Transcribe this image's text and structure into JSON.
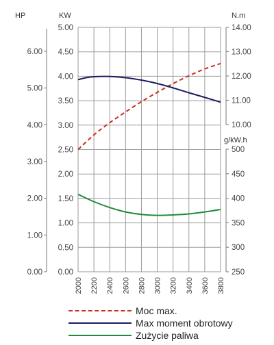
{
  "chart_data": {
    "type": "line",
    "x_label": "",
    "x_ticks": [
      2000,
      2200,
      2400,
      2600,
      2800,
      3000,
      3200,
      3400,
      3600,
      3800
    ],
    "xlim": [
      2000,
      3800
    ],
    "axes": {
      "hp": {
        "unit": "HP",
        "ticks": [
          "0.00",
          "1.00",
          "2.00",
          "3.00",
          "4.00",
          "5.00",
          "6.00"
        ],
        "range": [
          0,
          6.65
        ]
      },
      "kw": {
        "unit": "KW",
        "ticks": [
          "0.00",
          "0.50",
          "1.00",
          "1.50",
          "2.00",
          "2.50",
          "3.00",
          "3.50",
          "4.00",
          "4.50",
          "5.00"
        ],
        "range": [
          0,
          5.0
        ]
      },
      "nm": {
        "unit": "N.m",
        "ticks": [
          "10.00",
          "11.00",
          "12.00",
          "13.00",
          "14.00"
        ],
        "range": [
          10,
          14
        ]
      },
      "gkwh": {
        "unit": "g/kW.h",
        "ticks": [
          "250",
          "300",
          "350",
          "400",
          "450",
          "500"
        ],
        "range": [
          250,
          500
        ]
      }
    },
    "series": [
      {
        "name": "Moc max.",
        "axis": "kw",
        "style": "dashed",
        "color": "#cc2b1e",
        "x": [
          2000,
          2200,
          2400,
          2600,
          2800,
          3000,
          3200,
          3400,
          3600,
          3800
        ],
        "y": [
          2.5,
          2.8,
          3.05,
          3.27,
          3.48,
          3.67,
          3.85,
          4.01,
          4.15,
          4.26
        ]
      },
      {
        "name": "Max moment obrotowy",
        "axis": "nm",
        "style": "solid",
        "color": "#1c1a5e",
        "x": [
          2000,
          2100,
          2200,
          2400,
          2600,
          2800,
          3000,
          3200,
          3400,
          3600,
          3800
        ],
        "y": [
          11.85,
          11.93,
          11.97,
          11.98,
          11.93,
          11.83,
          11.69,
          11.51,
          11.31,
          11.12,
          10.92
        ]
      },
      {
        "name": "Zużycie paliwa",
        "axis": "gkwh",
        "style": "solid",
        "color": "#1e8a3c",
        "x": [
          2000,
          2200,
          2400,
          2600,
          2800,
          3000,
          3200,
          3400,
          3600,
          3800
        ],
        "y": [
          408,
          393,
          381,
          372,
          367,
          365,
          366,
          368,
          372,
          377
        ]
      }
    ]
  },
  "legend": [
    {
      "label": "Moc max.",
      "color": "#cc2b1e",
      "style": "dashed"
    },
    {
      "label": "Max moment obrotowy",
      "color": "#1c1a5e",
      "style": "solid"
    },
    {
      "label": "Zużycie paliwa",
      "color": "#1e8a3c",
      "style": "solid"
    }
  ]
}
